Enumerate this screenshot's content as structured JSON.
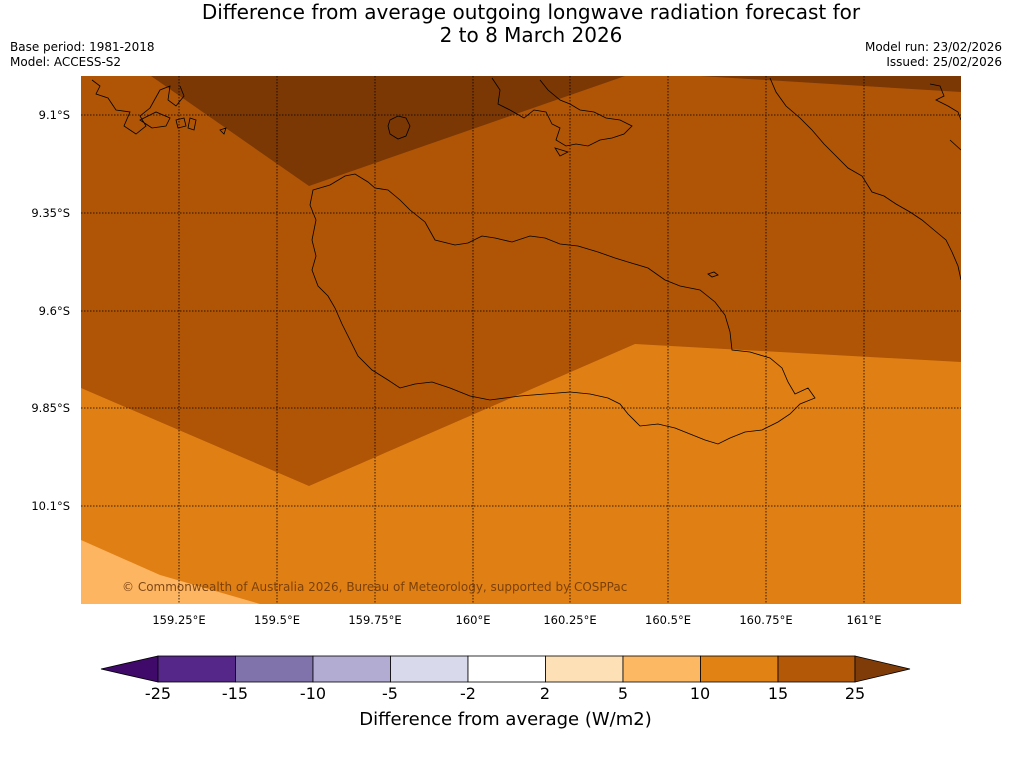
{
  "header": {
    "title_line1": "Difference from average outgoing longwave radiation forecast for",
    "title_line2": "2 to 8 March 2026",
    "base_period": "Base period: 1981-2018",
    "model": "Model: ACCESS-S2",
    "model_run": "Model run: 23/02/2026",
    "issued": "Issued: 25/02/2026"
  },
  "map": {
    "lat_labels": [
      "9.1°S",
      "9.35°S",
      "9.6°S",
      "9.85°S",
      "10.1°S"
    ],
    "lon_labels": [
      "159.25°E",
      "159.5°E",
      "159.75°E",
      "160°E",
      "160.25°E",
      "160.5°E",
      "160.75°E",
      "161°E"
    ],
    "copyright": "© Commonwealth of Australia 2026, Bureau of Meteorology, supported by COSPPac",
    "colors": {
      "bin_25_plus": "#7b3805",
      "bin_15_25": "#b05505",
      "bin_10_15": "#e08014",
      "bin_5_10": "#fdb562"
    }
  },
  "colorbar": {
    "ticks": [
      "-25",
      "-15",
      "-10",
      "-5",
      "-2",
      "2",
      "5",
      "10",
      "15",
      "25"
    ],
    "colors": [
      "#3f0a6a",
      "#542788",
      "#8073ac",
      "#b2abd2",
      "#d8daeb",
      "#ffffff",
      "#fee0b6",
      "#fdb863",
      "#e08214",
      "#b35806",
      "#7f3b08"
    ],
    "label": "Difference from average (W/m2)"
  }
}
